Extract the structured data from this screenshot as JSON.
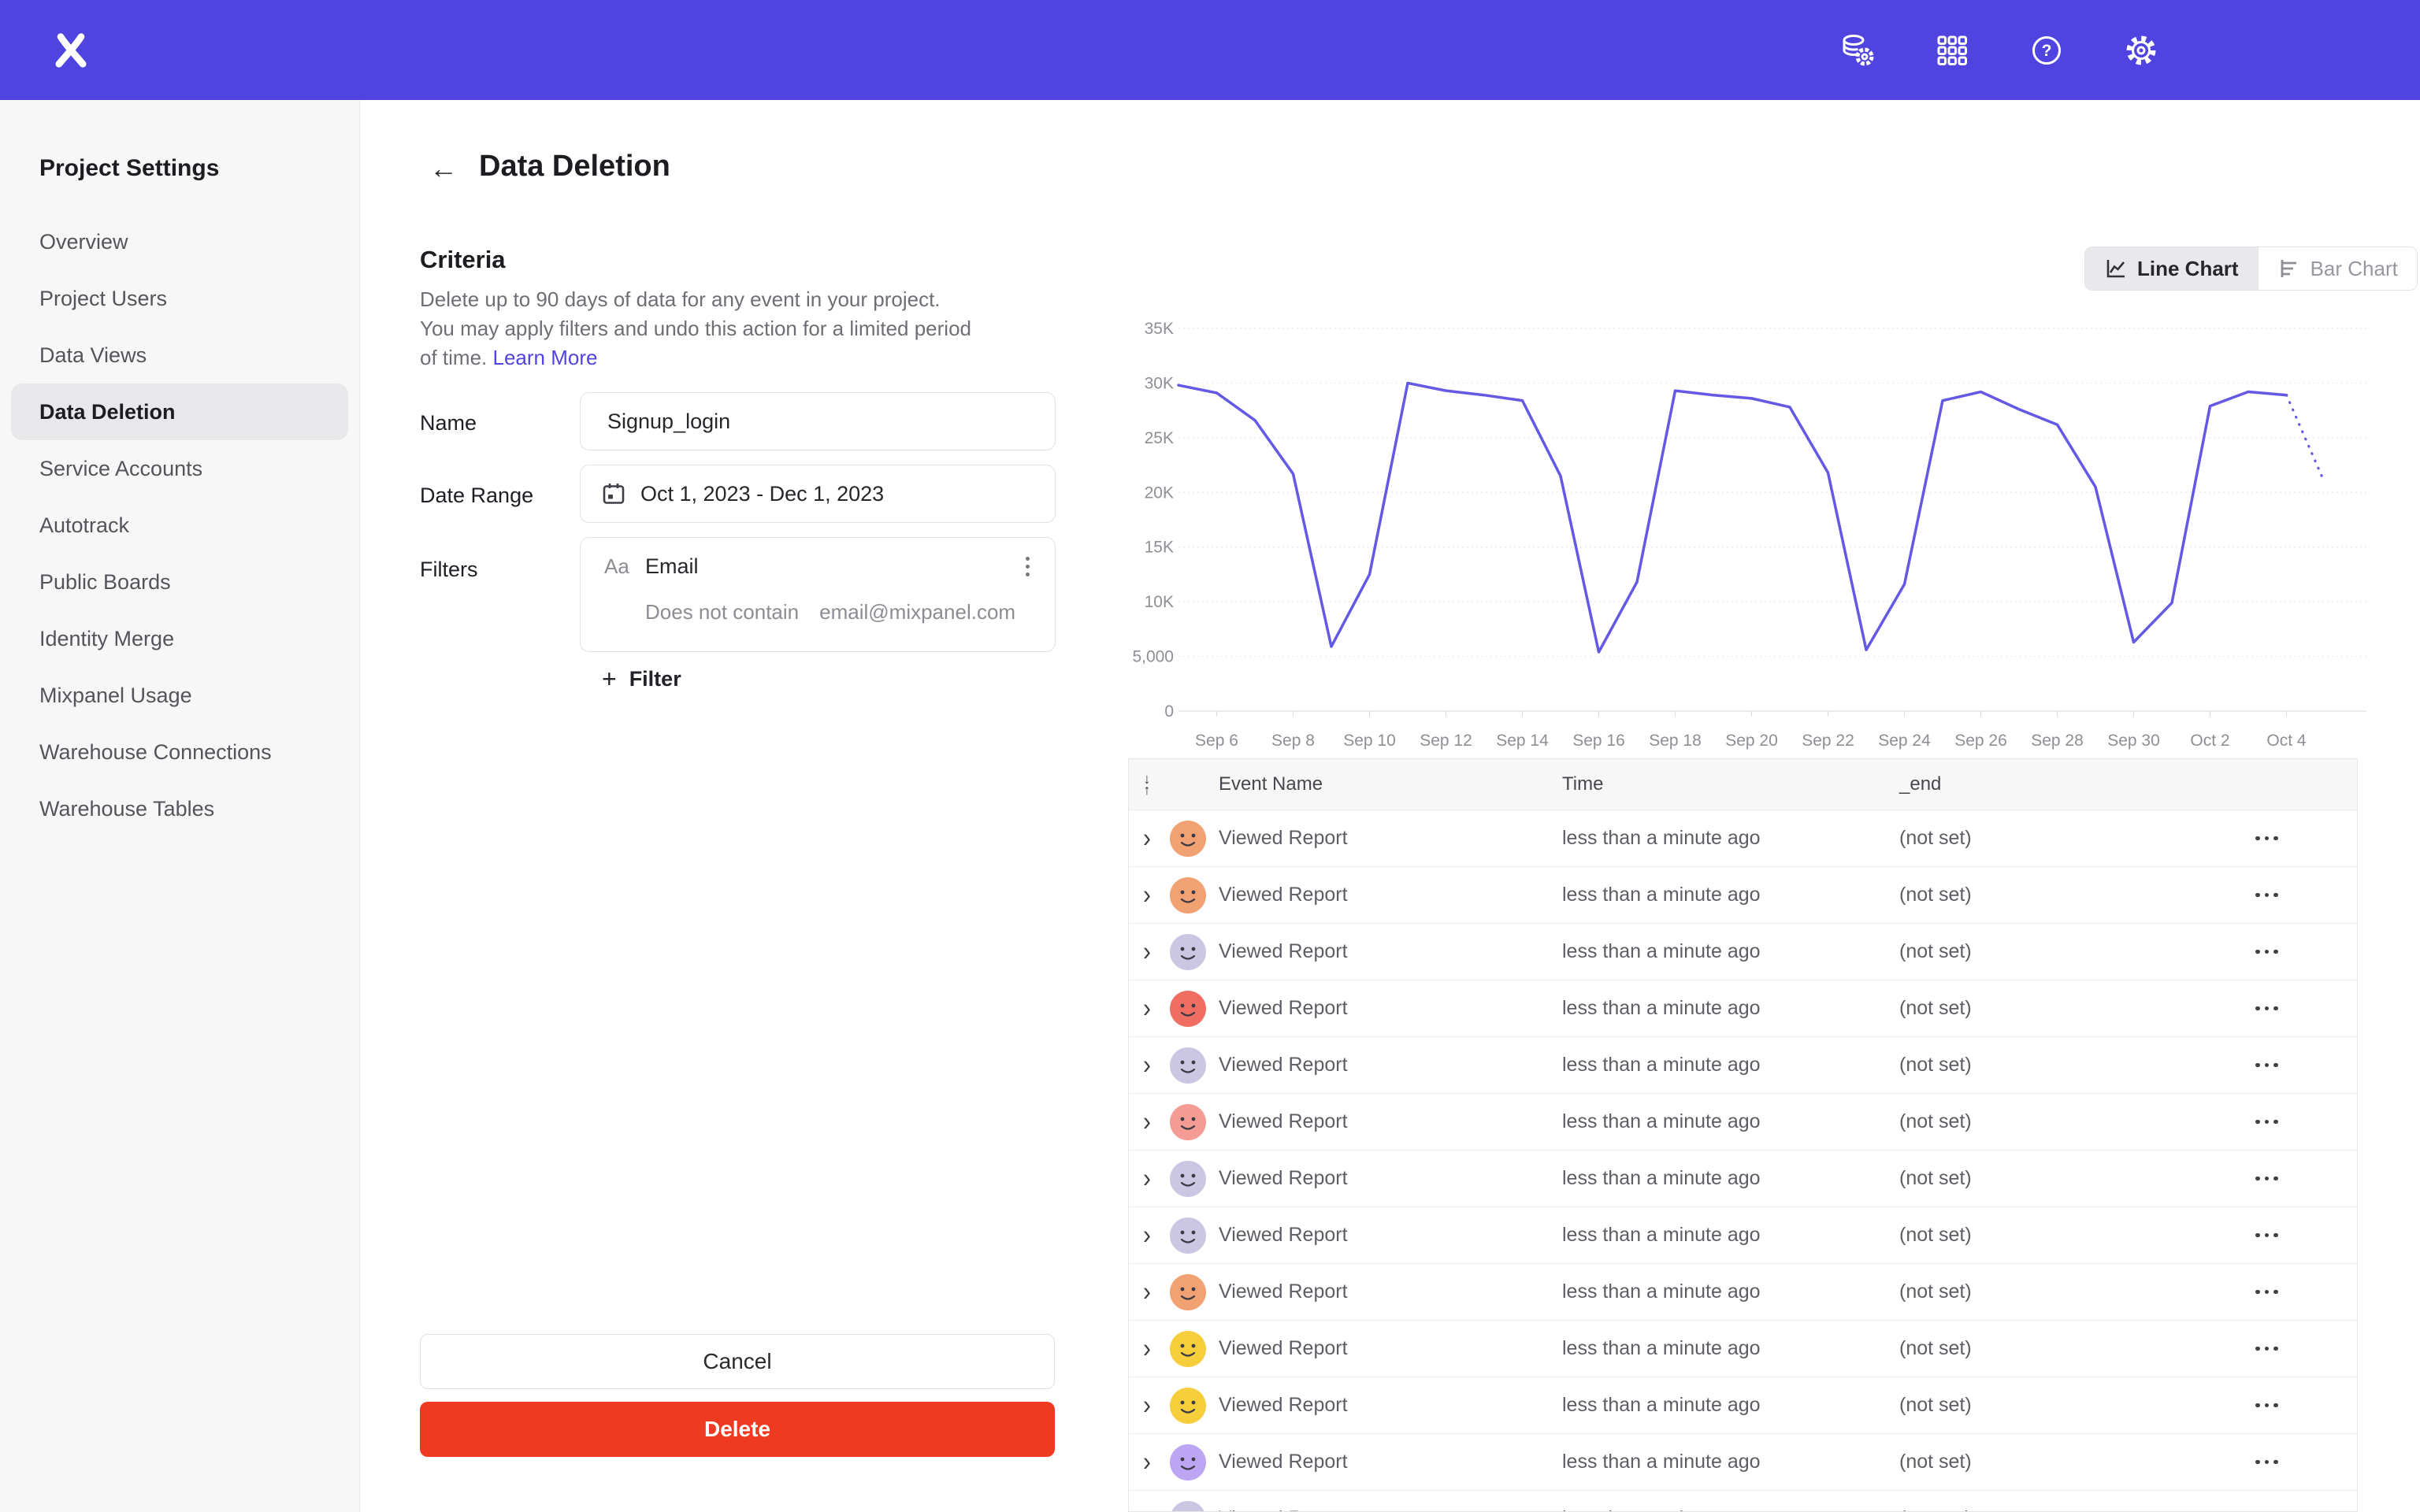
{
  "topbar": {
    "logo": "mixpanel-logo",
    "icons": [
      {
        "name": "data-management-icon"
      },
      {
        "name": "apps-grid-icon"
      },
      {
        "name": "help-icon"
      },
      {
        "name": "settings-gear-icon"
      }
    ]
  },
  "sidebar": {
    "title": "Project Settings",
    "items": [
      {
        "label": "Overview",
        "active": false
      },
      {
        "label": "Project Users",
        "active": false
      },
      {
        "label": "Data Views",
        "active": false
      },
      {
        "label": "Data Deletion",
        "active": true
      },
      {
        "label": "Service Accounts",
        "active": false
      },
      {
        "label": "Autotrack",
        "active": false
      },
      {
        "label": "Public Boards",
        "active": false
      },
      {
        "label": "Identity Merge",
        "active": false
      },
      {
        "label": "Mixpanel Usage",
        "active": false
      },
      {
        "label": "Warehouse Connections",
        "active": false
      },
      {
        "label": "Warehouse Tables",
        "active": false
      }
    ]
  },
  "header": {
    "title": "Data Deletion"
  },
  "criteria": {
    "heading": "Criteria",
    "description": "Delete up to 90 days of data for any event in your project. You may apply filters and undo this action for a limited period of time.",
    "learn_more": "Learn More",
    "fields": {
      "name": {
        "label": "Name",
        "value": "Signup_login"
      },
      "date_range": {
        "label": "Date Range",
        "value": "Oct 1, 2023 - Dec 1, 2023"
      },
      "filters": {
        "label": "Filters",
        "property_type": "Aa",
        "property": "Email",
        "operator": "Does not contain",
        "value": "email@mixpanel.com"
      }
    },
    "add_filter_label": "Filter",
    "cancel_label": "Cancel",
    "delete_label": "Delete"
  },
  "chart_toggle": {
    "line_label": "Line Chart",
    "bar_label": "Bar Chart",
    "active": "line"
  },
  "chart_data": {
    "type": "line",
    "title": "",
    "xlabel": "",
    "ylabel": "",
    "legend": "none",
    "grid": true,
    "ylim": [
      0,
      35000
    ],
    "ytick_values": [
      0,
      5000,
      10000,
      15000,
      20000,
      25000,
      30000,
      35000
    ],
    "ytick_labels": [
      "0",
      "5,000",
      "10K",
      "15K",
      "20K",
      "25K",
      "30K",
      "35K"
    ],
    "x": [
      "Sep 5",
      "Sep 6",
      "Sep 7",
      "Sep 8",
      "Sep 9",
      "Sep 10",
      "Sep 11",
      "Sep 12",
      "Sep 13",
      "Sep 14",
      "Sep 15",
      "Sep 16",
      "Sep 17",
      "Sep 18",
      "Sep 19",
      "Sep 20",
      "Sep 21",
      "Sep 22",
      "Sep 23",
      "Sep 24",
      "Sep 25",
      "Sep 26",
      "Sep 27",
      "Sep 28",
      "Sep 29",
      "Sep 30",
      "Oct 1",
      "Oct 2",
      "Oct 3",
      "Oct 4"
    ],
    "values": [
      29800,
      29100,
      26600,
      21700,
      5900,
      12500,
      30000,
      29300,
      28900,
      28400,
      21500,
      5400,
      11800,
      29300,
      28900,
      28600,
      27800,
      21800,
      5600,
      11600,
      28400,
      29200,
      27600,
      26200,
      20500,
      6300,
      9900,
      27900,
      29200,
      28900
    ],
    "projection": {
      "x": "Oct 5",
      "value": 21300,
      "style": "dotted"
    },
    "xtick_labels": [
      "Sep 6",
      "Sep 8",
      "Sep 10",
      "Sep 12",
      "Sep 14",
      "Sep 16",
      "Sep 18",
      "Sep 20",
      "Sep 22",
      "Sep 24",
      "Sep 26",
      "Sep 28",
      "Sep 30",
      "Oct 2",
      "Oct 4"
    ]
  },
  "table": {
    "columns": [
      "Event Name",
      "Time",
      "_end"
    ],
    "rows": [
      {
        "event": "Viewed Report",
        "time": "less than a minute ago",
        "end": "(not set)",
        "avatar_color": "#F2A172"
      },
      {
        "event": "Viewed Report",
        "time": "less than a minute ago",
        "end": "(not set)",
        "avatar_color": "#F2A172"
      },
      {
        "event": "Viewed Report",
        "time": "less than a minute ago",
        "end": "(not set)",
        "avatar_color": "#CBC7E2"
      },
      {
        "event": "Viewed Report",
        "time": "less than a minute ago",
        "end": "(not set)",
        "avatar_color": "#EF6E61"
      },
      {
        "event": "Viewed Report",
        "time": "less than a minute ago",
        "end": "(not set)",
        "avatar_color": "#CBC7E2"
      },
      {
        "event": "Viewed Report",
        "time": "less than a minute ago",
        "end": "(not set)",
        "avatar_color": "#F49B93"
      },
      {
        "event": "Viewed Report",
        "time": "less than a minute ago",
        "end": "(not set)",
        "avatar_color": "#CBC7E2"
      },
      {
        "event": "Viewed Report",
        "time": "less than a minute ago",
        "end": "(not set)",
        "avatar_color": "#CBC7E2"
      },
      {
        "event": "Viewed Report",
        "time": "less than a minute ago",
        "end": "(not set)",
        "avatar_color": "#F2A172"
      },
      {
        "event": "Viewed Report",
        "time": "less than a minute ago",
        "end": "(not set)",
        "avatar_color": "#F6CE3C"
      },
      {
        "event": "Viewed Report",
        "time": "less than a minute ago",
        "end": "(not set)",
        "avatar_color": "#F6CE3C"
      },
      {
        "event": "Viewed Report",
        "time": "less than a minute ago",
        "end": "(not set)",
        "avatar_color": "#BCA5F2"
      },
      {
        "event": "Viewed Report",
        "time": "less than a minute ago",
        "end": "(not set)",
        "avatar_color": "#CBC7E2"
      }
    ]
  },
  "colors": {
    "accent": "#4F44E0",
    "chart_line": "#6459E4",
    "delete_red": "#EE3A21",
    "sidebar_bg": "#F7F7F8",
    "active_pill": "#E8E8EA"
  }
}
